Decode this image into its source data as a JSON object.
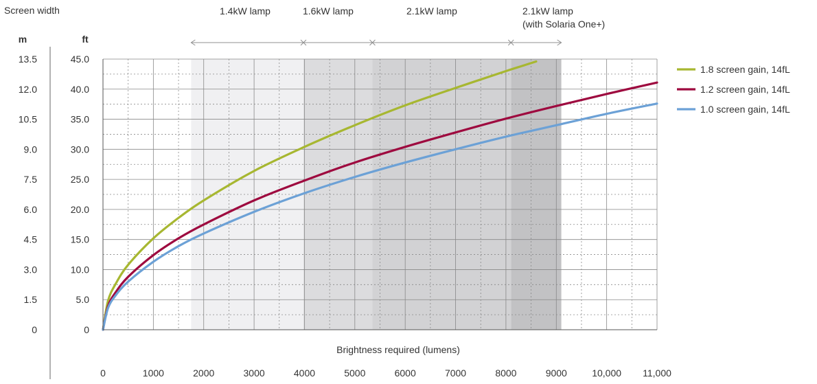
{
  "screen_width_label": "Screen width",
  "unit_m": "m",
  "unit_ft": "ft",
  "m_ticks": [
    "13.5",
    "12.0",
    "10.5",
    "9.0",
    "7.5",
    "6.0",
    "4.5",
    "3.0",
    "1.5",
    "0"
  ],
  "colors": {
    "grid": "#888888",
    "band_1_4kW": "#f0f0f2",
    "band_1_6kW": "#dcdcde",
    "band_2_1kW": "#d2d2d4",
    "band_2_1kW_plus": "#c2c2c4",
    "arrow": "#909090"
  },
  "lamp_bands": [
    {
      "label": "1.4kW lamp",
      "from": 1750,
      "to": 3980
    },
    {
      "label": "1.6kW lamp",
      "from": 3980,
      "to": 5350
    },
    {
      "label": "2.1kW lamp",
      "from": 5350,
      "to": 8100
    },
    {
      "label": "2.1kW lamp",
      "label2": "(with Solaria One+)",
      "from": 8100,
      "to": 9100
    }
  ],
  "chart_data": {
    "type": "line",
    "xlabel": "Brightness required (lumens)",
    "ylabel": "ft",
    "xlim": [
      0,
      11000
    ],
    "ylim": [
      0,
      45
    ],
    "x_ticks": [
      0,
      1000,
      2000,
      3000,
      4000,
      5000,
      6000,
      7000,
      8000,
      9000,
      10000,
      11000
    ],
    "x_tick_labels": [
      "0",
      "1000",
      "2000",
      "3000",
      "4000",
      "5000",
      "6000",
      "7000",
      "8000",
      "9000",
      "10,000",
      "11,000"
    ],
    "y_ticks": [
      45,
      40,
      35,
      30,
      25,
      20,
      15,
      10,
      5,
      0
    ],
    "y_tick_labels": [
      "45.0",
      "40.0",
      "35.0",
      "30.0",
      "25.0",
      "20.0",
      "15.0",
      "10.0",
      "5.0",
      "0"
    ],
    "grid": true,
    "legend_position": "right",
    "series": [
      {
        "name": "1.8 screen gain, 14fL",
        "color": "#a7b731",
        "x": [
          0,
          100,
          250,
          500,
          1000,
          1500,
          2000,
          3000,
          4000,
          5000,
          6000,
          7000,
          8000,
          8300,
          8600
        ],
        "y": [
          0,
          4.8,
          7.6,
          10.8,
          15.2,
          18.6,
          21.5,
          26.4,
          30.4,
          34.0,
          37.3,
          40.2,
          43.0,
          43.8,
          44.6
        ]
      },
      {
        "name": "1.2 screen gain, 14fL",
        "color": "#9e0a3f",
        "x": [
          0,
          100,
          250,
          500,
          1000,
          1500,
          2000,
          3000,
          4000,
          5000,
          6000,
          7000,
          8000,
          9000,
          10000,
          11000
        ],
        "y": [
          0,
          3.9,
          6.2,
          8.8,
          12.4,
          15.2,
          17.5,
          21.5,
          24.8,
          27.8,
          30.4,
          32.8,
          35.1,
          37.2,
          39.2,
          41.1
        ]
      },
      {
        "name": "1.0 screen gain, 14fL",
        "color": "#6ca1d6",
        "x": [
          0,
          100,
          250,
          500,
          1000,
          1500,
          2000,
          3000,
          4000,
          5000,
          6000,
          7000,
          8000,
          9000,
          10000,
          11000
        ],
        "y": [
          0,
          3.6,
          5.7,
          8.0,
          11.3,
          13.9,
          16.0,
          19.6,
          22.7,
          25.4,
          27.8,
          30.0,
          32.1,
          34.0,
          35.9,
          37.6
        ]
      }
    ]
  }
}
